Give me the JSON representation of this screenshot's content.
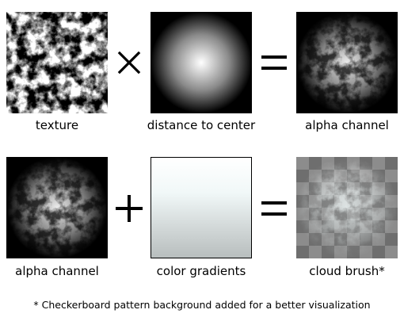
{
  "row1": {
    "texture_label": "texture",
    "distance_label": "distance to center",
    "alpha_label": "alpha channel"
  },
  "row2": {
    "alpha_label": "alpha channel",
    "gradients_label": "color gradients",
    "cloud_label": "cloud brush*"
  },
  "operators": {
    "multiply": "multiply-icon",
    "equals": "equals-icon",
    "plus": "plus-icon"
  },
  "footnote": "* Checkerboard pattern background added for a better visualization"
}
